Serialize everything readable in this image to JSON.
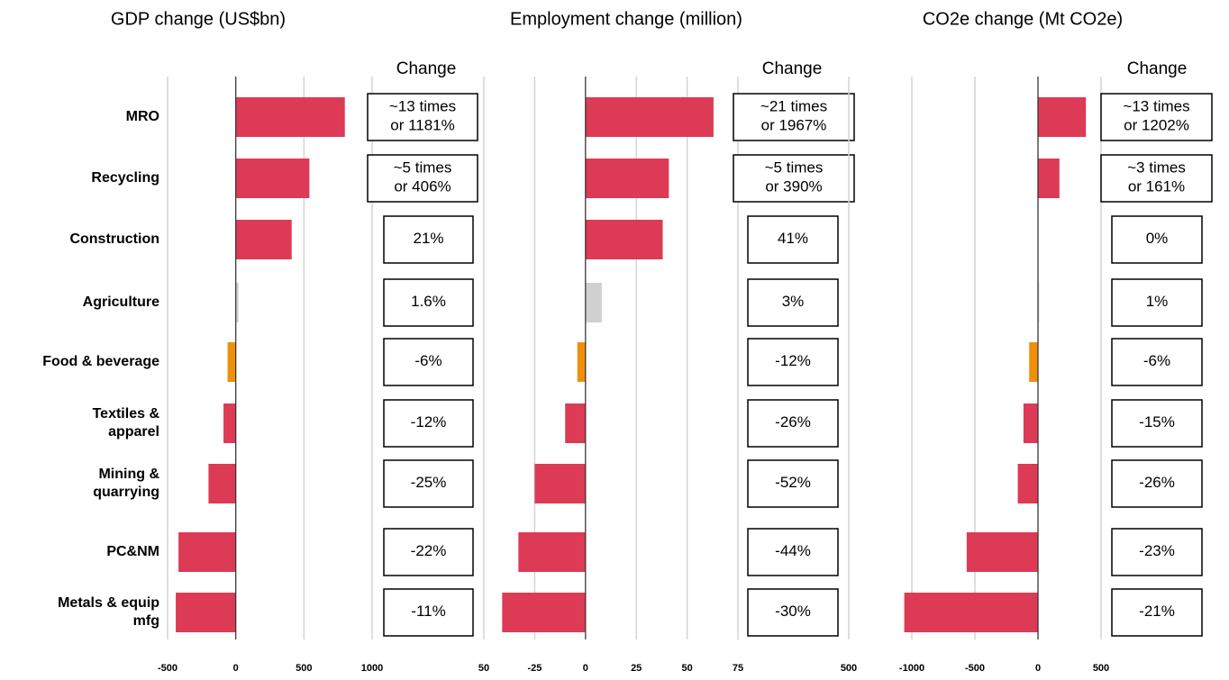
{
  "chart_data": [
    {
      "type": "bar",
      "title": "GDP change (US$bn)",
      "change_header": "Change",
      "categories": [
        [
          "MRO"
        ],
        [
          "Recycling"
        ],
        [
          "Construction"
        ],
        [
          "Agriculture"
        ],
        [
          "Food & beverage"
        ],
        [
          "Textiles &",
          "apparel"
        ],
        [
          "Mining &",
          "quarrying"
        ],
        [
          "PC&NM"
        ],
        [
          "Metals & equip",
          "mfg"
        ]
      ],
      "values": [
        800,
        540,
        410,
        20,
        -60,
        -90,
        -200,
        -420,
        -440
      ],
      "colors": [
        "#dc3a55",
        "#dc3a55",
        "#dc3a55",
        "#d0d0d0",
        "#f0900a",
        "#dc3a55",
        "#dc3a55",
        "#dc3a55",
        "#dc3a55"
      ],
      "changes": [
        [
          "~13 times",
          "or 1181%"
        ],
        [
          "~5 times",
          "or 406%"
        ],
        [
          "21%"
        ],
        [
          "1.6%"
        ],
        [
          "-6%"
        ],
        [
          "-12%"
        ],
        [
          "-25%"
        ],
        [
          "-22%"
        ],
        [
          "-11%"
        ]
      ],
      "xlim": [
        -500,
        1000
      ],
      "xticks": [
        -500,
        0,
        500,
        1000
      ],
      "grid": true
    },
    {
      "type": "bar",
      "title": "Employment change (million)",
      "change_header": "Change",
      "values": [
        63,
        41,
        38,
        8,
        -4,
        -10,
        -25,
        -33,
        -41
      ],
      "colors": [
        "#dc3a55",
        "#dc3a55",
        "#dc3a55",
        "#d0d0d0",
        "#f0900a",
        "#dc3a55",
        "#dc3a55",
        "#dc3a55",
        "#dc3a55"
      ],
      "changes": [
        [
          "~21 times",
          "or 1967%"
        ],
        [
          "~5 times",
          "or 390%"
        ],
        [
          "41%"
        ],
        [
          "3%"
        ],
        [
          "-12%"
        ],
        [
          "-26%"
        ],
        [
          "-52%"
        ],
        [
          "-44%"
        ],
        [
          "-30%"
        ]
      ],
      "xlim": [
        -50,
        75
      ],
      "xticks": [
        {
          "value": -50,
          "label": "50"
        },
        -25,
        0,
        25,
        50,
        75
      ],
      "grid": true
    },
    {
      "type": "bar",
      "title": "CO2e change (Mt CO2e)",
      "change_header": "Change",
      "values": [
        380,
        170,
        0,
        10,
        -70,
        -115,
        -160,
        -565,
        -1060
      ],
      "colors": [
        "#dc3a55",
        "#dc3a55",
        "#dc3a55",
        "#d0d0d0",
        "#f0900a",
        "#dc3a55",
        "#dc3a55",
        "#dc3a55",
        "#dc3a55"
      ],
      "changes": [
        [
          "~13 times",
          "or 1202%"
        ],
        [
          "~3 times",
          "or 161%"
        ],
        [
          "0%"
        ],
        [
          "1%"
        ],
        [
          "-6%"
        ],
        [
          "-15%"
        ],
        [
          "-26%"
        ],
        [
          "-23%"
        ],
        [
          "-21%"
        ]
      ],
      "xlim": [
        -1500,
        500
      ],
      "xticks": [
        {
          "value": -1500,
          "label": "500"
        },
        -1000,
        -500,
        0,
        500
      ],
      "grid": true
    }
  ]
}
